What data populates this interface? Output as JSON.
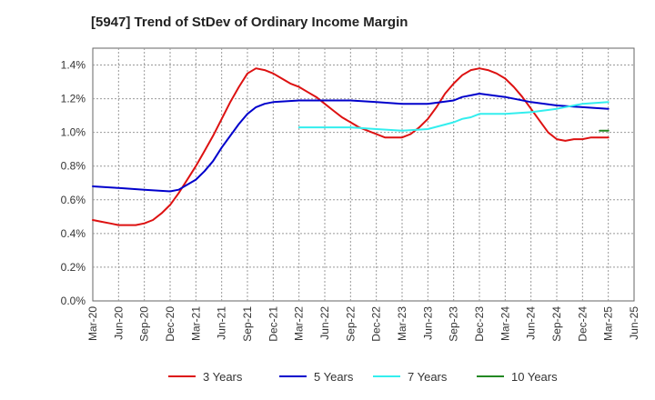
{
  "chart_data": {
    "type": "line",
    "title": "[5947]  Trend of StDev of Ordinary Income Margin",
    "xlabel": "",
    "ylabel": "",
    "x_ticks": [
      "Mar-20",
      "Jun-20",
      "Sep-20",
      "Dec-20",
      "Mar-21",
      "Jun-21",
      "Sep-21",
      "Dec-21",
      "Mar-22",
      "Jun-22",
      "Sep-22",
      "Dec-22",
      "Mar-23",
      "Jun-23",
      "Sep-23",
      "Dec-23",
      "Mar-24",
      "Jun-24",
      "Sep-24",
      "Dec-24",
      "Mar-25",
      "Jun-25"
    ],
    "y_ticks": [
      "0.0%",
      "0.2%",
      "0.4%",
      "0.6%",
      "0.8%",
      "1.0%",
      "1.2%",
      "1.4%"
    ],
    "ylim": [
      0,
      1.5
    ],
    "y_unit": "%",
    "grid": true,
    "legend_position": "bottom",
    "series": [
      {
        "name": "3 Years",
        "color": "#dd1111",
        "points": [
          [
            "Mar-20",
            0.48
          ],
          [
            "Apr-20",
            0.47
          ],
          [
            "May-20",
            0.46
          ],
          [
            "Jun-20",
            0.45
          ],
          [
            "Jul-20",
            0.45
          ],
          [
            "Aug-20",
            0.45
          ],
          [
            "Sep-20",
            0.46
          ],
          [
            "Oct-20",
            0.48
          ],
          [
            "Nov-20",
            0.52
          ],
          [
            "Dec-20",
            0.57
          ],
          [
            "Jan-21",
            0.64
          ],
          [
            "Feb-21",
            0.72
          ],
          [
            "Mar-21",
            0.8
          ],
          [
            "Apr-21",
            0.89
          ],
          [
            "May-21",
            0.98
          ],
          [
            "Jun-21",
            1.08
          ],
          [
            "Jul-21",
            1.18
          ],
          [
            "Aug-21",
            1.27
          ],
          [
            "Sep-21",
            1.35
          ],
          [
            "Oct-21",
            1.38
          ],
          [
            "Nov-21",
            1.37
          ],
          [
            "Dec-21",
            1.35
          ],
          [
            "Jan-22",
            1.32
          ],
          [
            "Feb-22",
            1.29
          ],
          [
            "Mar-22",
            1.27
          ],
          [
            "Apr-22",
            1.24
          ],
          [
            "May-22",
            1.21
          ],
          [
            "Jun-22",
            1.17
          ],
          [
            "Jul-22",
            1.13
          ],
          [
            "Aug-22",
            1.09
          ],
          [
            "Sep-22",
            1.06
          ],
          [
            "Oct-22",
            1.03
          ],
          [
            "Nov-22",
            1.01
          ],
          [
            "Dec-22",
            0.99
          ],
          [
            "Jan-23",
            0.97
          ],
          [
            "Feb-23",
            0.97
          ],
          [
            "Mar-23",
            0.97
          ],
          [
            "Apr-23",
            0.99
          ],
          [
            "May-23",
            1.03
          ],
          [
            "Jun-23",
            1.08
          ],
          [
            "Jul-23",
            1.15
          ],
          [
            "Aug-23",
            1.23
          ],
          [
            "Sep-23",
            1.29
          ],
          [
            "Oct-23",
            1.34
          ],
          [
            "Nov-23",
            1.37
          ],
          [
            "Dec-23",
            1.38
          ],
          [
            "Jan-24",
            1.37
          ],
          [
            "Feb-24",
            1.35
          ],
          [
            "Mar-24",
            1.32
          ],
          [
            "Apr-24",
            1.27
          ],
          [
            "May-24",
            1.21
          ],
          [
            "Jun-24",
            1.14
          ],
          [
            "Jul-24",
            1.07
          ],
          [
            "Aug-24",
            1.0
          ],
          [
            "Sep-24",
            0.96
          ],
          [
            "Oct-24",
            0.95
          ],
          [
            "Nov-24",
            0.96
          ],
          [
            "Dec-24",
            0.96
          ],
          [
            "Jan-25",
            0.97
          ],
          [
            "Feb-25",
            0.97
          ],
          [
            "Mar-25",
            0.97
          ]
        ]
      },
      {
        "name": "5 Years",
        "color": "#0000cc",
        "points": [
          [
            "Mar-20",
            0.68
          ],
          [
            "Jun-20",
            0.67
          ],
          [
            "Sep-20",
            0.66
          ],
          [
            "Dec-20",
            0.65
          ],
          [
            "Jan-21",
            0.66
          ],
          [
            "Feb-21",
            0.69
          ],
          [
            "Mar-21",
            0.72
          ],
          [
            "Apr-21",
            0.77
          ],
          [
            "May-21",
            0.83
          ],
          [
            "Jun-21",
            0.91
          ],
          [
            "Jul-21",
            0.98
          ],
          [
            "Aug-21",
            1.05
          ],
          [
            "Sep-21",
            1.11
          ],
          [
            "Oct-21",
            1.15
          ],
          [
            "Nov-21",
            1.17
          ],
          [
            "Dec-21",
            1.18
          ],
          [
            "Mar-22",
            1.19
          ],
          [
            "Jun-22",
            1.19
          ],
          [
            "Sep-22",
            1.19
          ],
          [
            "Dec-22",
            1.18
          ],
          [
            "Mar-23",
            1.17
          ],
          [
            "Jun-23",
            1.17
          ],
          [
            "Sep-23",
            1.19
          ],
          [
            "Oct-23",
            1.21
          ],
          [
            "Nov-23",
            1.22
          ],
          [
            "Dec-23",
            1.23
          ],
          [
            "Mar-24",
            1.21
          ],
          [
            "Jun-24",
            1.18
          ],
          [
            "Sep-24",
            1.16
          ],
          [
            "Dec-24",
            1.15
          ],
          [
            "Mar-25",
            1.14
          ]
        ]
      },
      {
        "name": "7 Years",
        "color": "#33eeee",
        "points": [
          [
            "Mar-22",
            1.03
          ],
          [
            "Jun-22",
            1.03
          ],
          [
            "Sep-22",
            1.03
          ],
          [
            "Dec-22",
            1.02
          ],
          [
            "Mar-23",
            1.01
          ],
          [
            "Jun-23",
            1.02
          ],
          [
            "Sep-23",
            1.06
          ],
          [
            "Oct-23",
            1.08
          ],
          [
            "Nov-23",
            1.09
          ],
          [
            "Dec-23",
            1.11
          ],
          [
            "Mar-24",
            1.11
          ],
          [
            "Jun-24",
            1.12
          ],
          [
            "Sep-24",
            1.14
          ],
          [
            "Dec-24",
            1.17
          ],
          [
            "Mar-25",
            1.18
          ]
        ]
      },
      {
        "name": "10 Years",
        "color": "#228822",
        "points": [
          [
            "Feb-25",
            1.01
          ],
          [
            "Mar-25",
            1.01
          ]
        ]
      }
    ]
  }
}
